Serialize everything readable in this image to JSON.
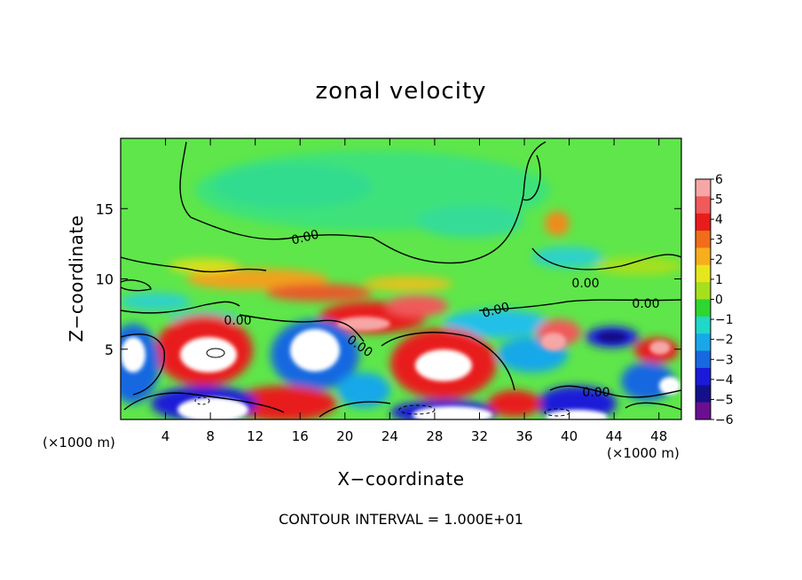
{
  "chart_data": {
    "type": "heatmap",
    "title": "zonal velocity",
    "xlabel": "X−coordinate",
    "ylabel": "Z−coordinate",
    "x_unit_label": "(×1000 m)",
    "z_unit_label": "(×1000 m)",
    "x_range": [
      0,
      50
    ],
    "y_range": [
      0,
      20
    ],
    "x_ticks": [
      4,
      8,
      12,
      16,
      20,
      24,
      28,
      32,
      36,
      40,
      44,
      48
    ],
    "y_ticks": [
      5,
      10,
      15
    ],
    "colorbar": {
      "labels": [
        "6",
        "5",
        "4",
        "3",
        "2",
        "1",
        "0",
        "−1",
        "−2",
        "−3",
        "−4",
        "−5",
        "−6"
      ],
      "colors": [
        "#f7a6a6",
        "#f05a5a",
        "#e81c1c",
        "#f06d1c",
        "#f7ae1c",
        "#e6e61c",
        "#a6e01c",
        "#2fd62f",
        "#1fd8c8",
        "#18a8e8",
        "#1868e0",
        "#1a1ad8",
        "#14108a",
        "#6a0f8f"
      ]
    },
    "contour_labels": [
      "0.00",
      "0.00",
      "0.00",
      "0.00",
      "0.00",
      "0.00",
      "0.00"
    ],
    "footnote": "CONTOUR INTERVAL = 1.000E+01"
  }
}
